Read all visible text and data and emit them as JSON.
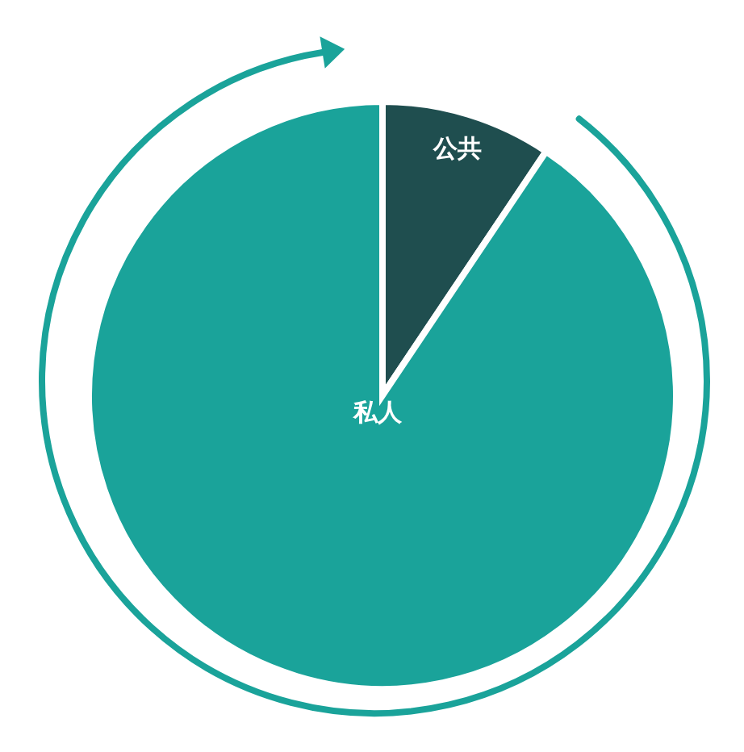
{
  "chart_data": {
    "type": "pie",
    "categories": [
      "公共",
      "私人"
    ],
    "values": [
      9.4,
      90.6
    ],
    "colors": [
      "#1f4e4f",
      "#1aa39a"
    ]
  }
}
